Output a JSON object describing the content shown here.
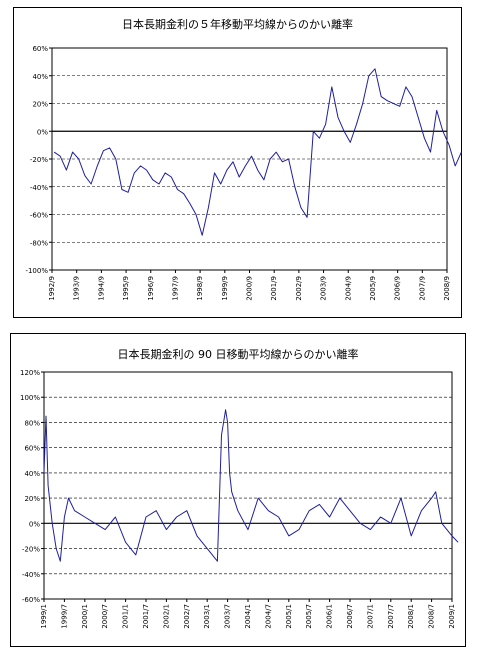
{
  "chart_data": [
    {
      "type": "line",
      "title": "日本長期金利の５年移動平均線からのかい離率",
      "xlabel": "",
      "ylabel": "",
      "ylim": [
        -100,
        60
      ],
      "yticks": [
        "60%",
        "40%",
        "20%",
        "0%",
        "-20%",
        "-40%",
        "-60%",
        "-80%",
        "-100%"
      ],
      "ytick_values": [
        60,
        40,
        20,
        0,
        -20,
        -40,
        -60,
        -80,
        -100
      ],
      "xticks": [
        "1992/9",
        "1993/9",
        "1994/9",
        "1995/9",
        "1996/9",
        "1997/9",
        "1998/9",
        "1999/9",
        "2000/9",
        "2001/9",
        "2002/9",
        "2003/9",
        "2004/9",
        "2005/9",
        "2006/9",
        "2007/9",
        "2008/9"
      ],
      "grid": "horizontal dashed",
      "line_color": "#1f1f9e",
      "series": [
        {
          "x": [
            1992.75,
            1993.0,
            1993.25,
            1993.5,
            1993.75,
            1994.0,
            1994.25,
            1994.5,
            1994.75,
            1995.0,
            1995.25,
            1995.5,
            1995.75,
            1996.0,
            1996.25,
            1996.5,
            1996.75,
            1997.0,
            1997.25,
            1997.5,
            1997.75,
            1998.0,
            1998.25,
            1998.5,
            1998.75,
            1999.0,
            1999.25,
            1999.5,
            1999.75,
            2000.0,
            2000.25,
            2000.5,
            2000.75,
            2001.0,
            2001.25,
            2001.5,
            2001.75,
            2002.0,
            2002.25,
            2002.5,
            2002.75,
            2003.0,
            2003.25,
            2003.5,
            2003.75,
            2004.0,
            2004.25,
            2004.5,
            2004.75,
            2005.0,
            2005.25,
            2005.5,
            2005.75,
            2006.0,
            2006.25,
            2006.5,
            2006.75,
            2007.0,
            2007.25,
            2007.5,
            2007.75,
            2008.0,
            2008.25,
            2008.5,
            2008.75,
            2009.0,
            2009.25
          ],
          "y": [
            -15,
            -18,
            -28,
            -15,
            -20,
            -32,
            -38,
            -25,
            -14,
            -12,
            -20,
            -42,
            -44,
            -30,
            -25,
            -28,
            -35,
            -38,
            -30,
            -33,
            -42,
            -45,
            -52,
            -60,
            -75,
            -55,
            -30,
            -38,
            -28,
            -22,
            -33,
            -25,
            -18,
            -28,
            -35,
            -20,
            -15,
            -22,
            -20,
            -40,
            -55,
            -62,
            0,
            -5,
            5,
            32,
            10,
            0,
            -8,
            5,
            20,
            40,
            45,
            25,
            22,
            20,
            18,
            32,
            25,
            10,
            -5,
            -15,
            15,
            0,
            -10,
            -25,
            -15
          ]
        }
      ]
    },
    {
      "type": "line",
      "title": "日本長期金利の 90 日移動平均線からのかい離率",
      "xlabel": "",
      "ylabel": "",
      "ylim": [
        -60,
        120
      ],
      "yticks": [
        "120%",
        "100%",
        "80%",
        "60%",
        "40%",
        "20%",
        "0%",
        "-20%",
        "-40%",
        "-60%"
      ],
      "ytick_values": [
        120,
        100,
        80,
        60,
        40,
        20,
        0,
        -20,
        -40,
        -60
      ],
      "xticks": [
        "1999/1",
        "1999/7",
        "2000/1",
        "2000/7",
        "2001/1",
        "2001/7",
        "2002/1",
        "2002/7",
        "2003/1",
        "2003/7",
        "2004/1",
        "2004/7",
        "2005/1",
        "2005/7",
        "2006/1",
        "2006/7",
        "2007/1",
        "2007/7",
        "2008/1",
        "2008/7",
        "2009/1"
      ],
      "grid": "horizontal dashed",
      "line_color": "#1f1f9e",
      "series": [
        {
          "x": [
            1999.0,
            1999.05,
            1999.1,
            1999.2,
            1999.3,
            1999.4,
            1999.5,
            1999.6,
            1999.75,
            2000.0,
            2000.25,
            2000.5,
            2000.75,
            2001.0,
            2001.25,
            2001.5,
            2001.75,
            2002.0,
            2002.25,
            2002.5,
            2002.75,
            2003.0,
            2003.25,
            2003.35,
            2003.45,
            2003.5,
            2003.55,
            2003.6,
            2003.75,
            2004.0,
            2004.25,
            2004.5,
            2004.75,
            2005.0,
            2005.25,
            2005.5,
            2005.75,
            2006.0,
            2006.25,
            2006.5,
            2006.75,
            2007.0,
            2007.25,
            2007.5,
            2007.75,
            2008.0,
            2008.25,
            2008.5,
            2008.6,
            2008.75,
            2009.0,
            2009.15
          ],
          "y": [
            40,
            85,
            30,
            0,
            -20,
            -30,
            5,
            20,
            10,
            5,
            0,
            -5,
            5,
            -15,
            -25,
            5,
            10,
            -5,
            5,
            10,
            -10,
            -20,
            -30,
            70,
            90,
            80,
            40,
            25,
            10,
            -5,
            20,
            10,
            5,
            -10,
            -5,
            10,
            15,
            5,
            20,
            10,
            0,
            -5,
            5,
            0,
            20,
            -10,
            10,
            20,
            25,
            0,
            -10,
            -15
          ]
        }
      ]
    }
  ]
}
